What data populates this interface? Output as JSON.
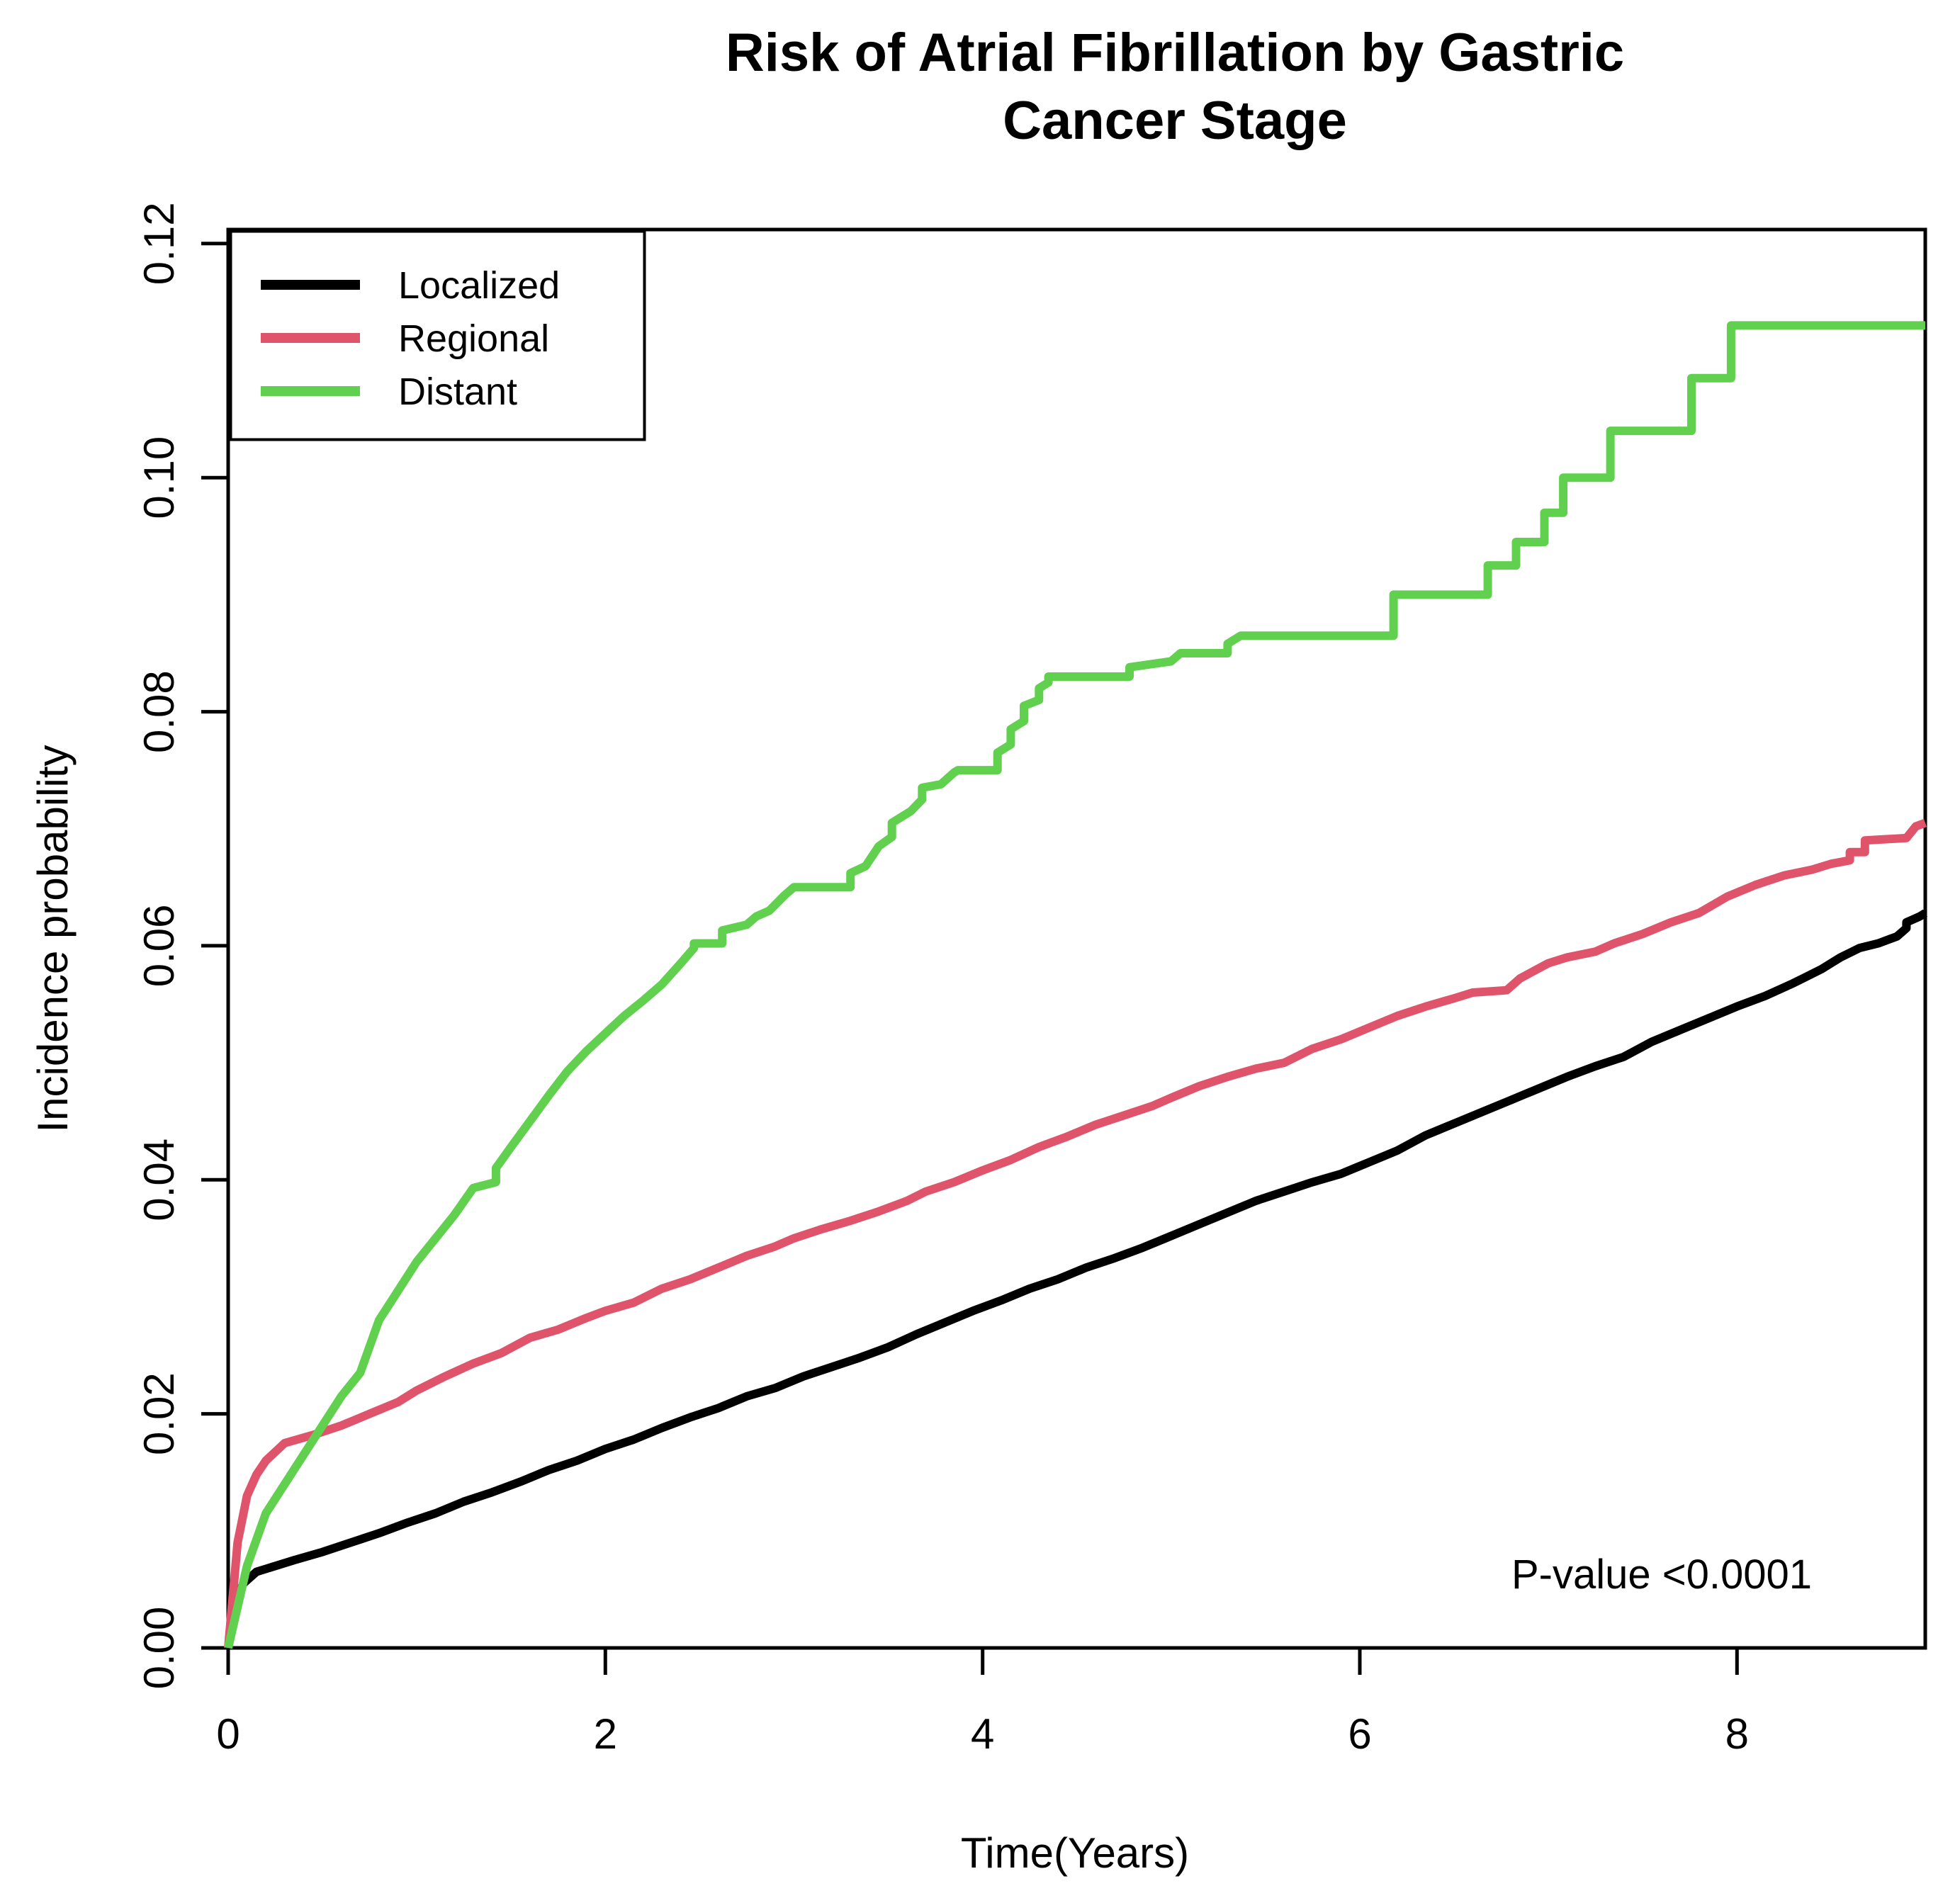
{
  "chart_data": {
    "type": "line",
    "title_line1": "Risk of Atrial Fibrillation by Gastric",
    "title_line2": "Cancer Stage",
    "xlabel": "Time(Years)",
    "ylabel": "Incidence probability",
    "xlim": [
      0,
      9
    ],
    "ylim": [
      0,
      0.1212
    ],
    "grid": false,
    "legend_position": "top-left",
    "x_ticks": [
      0,
      2,
      4,
      6,
      8
    ],
    "x_tick_labels": [
      "0",
      "2",
      "4",
      "6",
      "8"
    ],
    "y_ticks": [
      0.0,
      0.02,
      0.04,
      0.06,
      0.08,
      0.1,
      0.12
    ],
    "y_tick_labels": [
      "0.00",
      "0.02",
      "0.04",
      "0.06",
      "0.08",
      "0.10",
      "0.12"
    ],
    "annotation": {
      "p_value": "P-value <0.0001"
    },
    "series": [
      {
        "name": "Localized",
        "color": "#000000",
        "points": [
          [
            0,
            0
          ],
          [
            0.04,
            0.004
          ],
          [
            0.08,
            0.0055
          ],
          [
            0.15,
            0.0065
          ],
          [
            0.25,
            0.007
          ],
          [
            0.35,
            0.0075
          ],
          [
            0.5,
            0.0082
          ],
          [
            0.65,
            0.009
          ],
          [
            0.8,
            0.0098
          ],
          [
            0.95,
            0.0107
          ],
          [
            1.1,
            0.0115
          ],
          [
            1.25,
            0.0125
          ],
          [
            1.4,
            0.0133
          ],
          [
            1.55,
            0.0142
          ],
          [
            1.7,
            0.0152
          ],
          [
            1.85,
            0.016
          ],
          [
            2.0,
            0.017
          ],
          [
            2.15,
            0.0178
          ],
          [
            2.3,
            0.0188
          ],
          [
            2.45,
            0.0197
          ],
          [
            2.6,
            0.0205
          ],
          [
            2.75,
            0.0215
          ],
          [
            2.9,
            0.0222
          ],
          [
            3.05,
            0.0232
          ],
          [
            3.2,
            0.024
          ],
          [
            3.35,
            0.0248
          ],
          [
            3.5,
            0.0257
          ],
          [
            3.65,
            0.0268
          ],
          [
            3.8,
            0.0278
          ],
          [
            3.95,
            0.0288
          ],
          [
            4.1,
            0.0297
          ],
          [
            4.25,
            0.0307
          ],
          [
            4.4,
            0.0315
          ],
          [
            4.55,
            0.0325
          ],
          [
            4.7,
            0.0333
          ],
          [
            4.85,
            0.0342
          ],
          [
            5.0,
            0.0352
          ],
          [
            5.15,
            0.0362
          ],
          [
            5.3,
            0.0372
          ],
          [
            5.45,
            0.0382
          ],
          [
            5.6,
            0.039
          ],
          [
            5.75,
            0.0398
          ],
          [
            5.9,
            0.0405
          ],
          [
            6.05,
            0.0415
          ],
          [
            6.2,
            0.0425
          ],
          [
            6.35,
            0.0438
          ],
          [
            6.5,
            0.0448
          ],
          [
            6.65,
            0.0458
          ],
          [
            6.8,
            0.0468
          ],
          [
            6.95,
            0.0478
          ],
          [
            7.1,
            0.0488
          ],
          [
            7.25,
            0.0497
          ],
          [
            7.4,
            0.0505
          ],
          [
            7.55,
            0.0518
          ],
          [
            7.7,
            0.0528
          ],
          [
            7.85,
            0.0538
          ],
          [
            8.0,
            0.0548
          ],
          [
            8.15,
            0.0557
          ],
          [
            8.3,
            0.0568
          ],
          [
            8.45,
            0.058
          ],
          [
            8.55,
            0.059
          ],
          [
            8.65,
            0.0598
          ],
          [
            8.75,
            0.0602
          ],
          [
            8.85,
            0.0608
          ],
          [
            8.9,
            0.0615
          ],
          [
            8.9,
            0.062
          ],
          [
            8.97,
            0.0625
          ],
          [
            9.0,
            0.0628
          ]
        ]
      },
      {
        "name": "Regional",
        "color": "#DF536B",
        "points": [
          [
            0,
            0
          ],
          [
            0.05,
            0.009
          ],
          [
            0.1,
            0.013
          ],
          [
            0.15,
            0.0148
          ],
          [
            0.2,
            0.016
          ],
          [
            0.3,
            0.0175
          ],
          [
            0.45,
            0.0182
          ],
          [
            0.6,
            0.019
          ],
          [
            0.75,
            0.02
          ],
          [
            0.9,
            0.021
          ],
          [
            1.0,
            0.022
          ],
          [
            1.15,
            0.0232
          ],
          [
            1.3,
            0.0243
          ],
          [
            1.45,
            0.0252
          ],
          [
            1.6,
            0.0265
          ],
          [
            1.75,
            0.0272
          ],
          [
            1.9,
            0.0282
          ],
          [
            2.0,
            0.0288
          ],
          [
            2.15,
            0.0295
          ],
          [
            2.3,
            0.0307
          ],
          [
            2.45,
            0.0315
          ],
          [
            2.6,
            0.0325
          ],
          [
            2.75,
            0.0335
          ],
          [
            2.9,
            0.0343
          ],
          [
            3.0,
            0.035
          ],
          [
            3.15,
            0.0358
          ],
          [
            3.3,
            0.0365
          ],
          [
            3.45,
            0.0373
          ],
          [
            3.6,
            0.0382
          ],
          [
            3.7,
            0.039
          ],
          [
            3.85,
            0.0398
          ],
          [
            4.0,
            0.0408
          ],
          [
            4.15,
            0.0417
          ],
          [
            4.3,
            0.0428
          ],
          [
            4.45,
            0.0437
          ],
          [
            4.6,
            0.0447
          ],
          [
            4.75,
            0.0455
          ],
          [
            4.9,
            0.0463
          ],
          [
            5.0,
            0.047
          ],
          [
            5.15,
            0.048
          ],
          [
            5.3,
            0.0488
          ],
          [
            5.45,
            0.0495
          ],
          [
            5.6,
            0.05
          ],
          [
            5.75,
            0.0512
          ],
          [
            5.9,
            0.052
          ],
          [
            6.05,
            0.053
          ],
          [
            6.2,
            0.054
          ],
          [
            6.35,
            0.0548
          ],
          [
            6.5,
            0.0555
          ],
          [
            6.6,
            0.056
          ],
          [
            6.78,
            0.0562
          ],
          [
            6.85,
            0.0572
          ],
          [
            7.0,
            0.0585
          ],
          [
            7.1,
            0.059
          ],
          [
            7.25,
            0.0595
          ],
          [
            7.35,
            0.0602
          ],
          [
            7.5,
            0.061
          ],
          [
            7.65,
            0.062
          ],
          [
            7.8,
            0.0628
          ],
          [
            7.95,
            0.0642
          ],
          [
            8.1,
            0.0652
          ],
          [
            8.25,
            0.066
          ],
          [
            8.4,
            0.0665
          ],
          [
            8.5,
            0.067
          ],
          [
            8.6,
            0.0673
          ],
          [
            8.6,
            0.068
          ],
          [
            8.68,
            0.068
          ],
          [
            8.68,
            0.069
          ],
          [
            8.9,
            0.0692
          ],
          [
            8.95,
            0.0702
          ],
          [
            9.0,
            0.0705
          ]
        ]
      },
      {
        "name": "Distant",
        "color": "#61D04F",
        "points": [
          [
            0,
            0
          ],
          [
            0.1,
            0.007
          ],
          [
            0.2,
            0.0115
          ],
          [
            0.3,
            0.014
          ],
          [
            0.46,
            0.018
          ],
          [
            0.6,
            0.0215
          ],
          [
            0.7,
            0.0235
          ],
          [
            0.8,
            0.028
          ],
          [
            0.9,
            0.0305
          ],
          [
            1.0,
            0.033
          ],
          [
            1.1,
            0.035
          ],
          [
            1.2,
            0.037
          ],
          [
            1.3,
            0.0393
          ],
          [
            1.42,
            0.0398
          ],
          [
            1.42,
            0.041
          ],
          [
            1.5,
            0.0428
          ],
          [
            1.6,
            0.045
          ],
          [
            1.7,
            0.0472
          ],
          [
            1.8,
            0.0493
          ],
          [
            1.9,
            0.051
          ],
          [
            2.0,
            0.0525
          ],
          [
            2.1,
            0.054
          ],
          [
            2.2,
            0.0553
          ],
          [
            2.3,
            0.0567
          ],
          [
            2.4,
            0.0585
          ],
          [
            2.47,
            0.0598
          ],
          [
            2.47,
            0.0602
          ],
          [
            2.62,
            0.0602
          ],
          [
            2.62,
            0.0613
          ],
          [
            2.75,
            0.0618
          ],
          [
            2.8,
            0.0625
          ],
          [
            2.87,
            0.063
          ],
          [
            2.95,
            0.0643
          ],
          [
            3.0,
            0.065
          ],
          [
            3.3,
            0.065
          ],
          [
            3.3,
            0.0662
          ],
          [
            3.38,
            0.0668
          ],
          [
            3.45,
            0.0685
          ],
          [
            3.52,
            0.0693
          ],
          [
            3.52,
            0.0705
          ],
          [
            3.62,
            0.0715
          ],
          [
            3.68,
            0.0725
          ],
          [
            3.68,
            0.0735
          ],
          [
            3.78,
            0.0738
          ],
          [
            3.85,
            0.0748
          ],
          [
            3.87,
            0.075
          ],
          [
            4.08,
            0.075
          ],
          [
            4.08,
            0.0765
          ],
          [
            4.15,
            0.0772
          ],
          [
            4.15,
            0.0785
          ],
          [
            4.22,
            0.0792
          ],
          [
            4.22,
            0.0805
          ],
          [
            4.3,
            0.081
          ],
          [
            4.3,
            0.082
          ],
          [
            4.35,
            0.0825
          ],
          [
            4.35,
            0.083
          ],
          [
            4.78,
            0.083
          ],
          [
            4.78,
            0.0838
          ],
          [
            5.0,
            0.0843
          ],
          [
            5.05,
            0.085
          ],
          [
            5.3,
            0.085
          ],
          [
            5.3,
            0.0858
          ],
          [
            5.37,
            0.0865
          ],
          [
            6.18,
            0.0865
          ],
          [
            6.18,
            0.09
          ],
          [
            6.68,
            0.09
          ],
          [
            6.68,
            0.0925
          ],
          [
            6.83,
            0.0925
          ],
          [
            6.83,
            0.0945
          ],
          [
            6.98,
            0.0945
          ],
          [
            6.98,
            0.097
          ],
          [
            7.08,
            0.097
          ],
          [
            7.08,
            0.1
          ],
          [
            7.33,
            0.1
          ],
          [
            7.33,
            0.104
          ],
          [
            7.76,
            0.104
          ],
          [
            7.76,
            0.1085
          ],
          [
            7.97,
            0.1085
          ],
          [
            7.97,
            0.113
          ],
          [
            9.0,
            0.113
          ]
        ]
      }
    ]
  }
}
